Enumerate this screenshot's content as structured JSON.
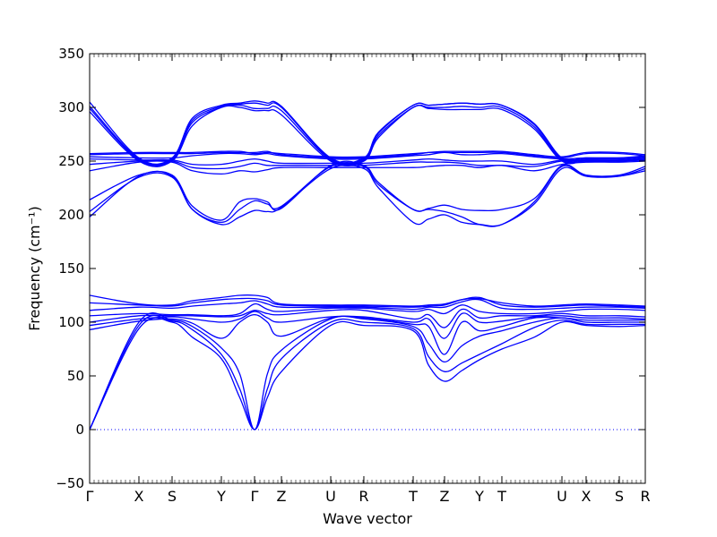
{
  "chart_data": {
    "type": "line",
    "title": "",
    "xlabel": "Wave vector",
    "ylabel": "Frequency (cm⁻¹)",
    "ylim": [
      -50,
      350
    ],
    "yticks": [
      -50,
      0,
      50,
      100,
      150,
      200,
      250,
      300,
      350
    ],
    "grid": false,
    "legend": "none",
    "x_range": [
      0,
      100
    ],
    "kpoints": [
      {
        "label": "Γ",
        "x": 0
      },
      {
        "label": "X",
        "x": 8.87
      },
      {
        "label": "S",
        "x": 14.84
      },
      {
        "label": "Y",
        "x": 23.71
      },
      {
        "label": "Γ",
        "x": 29.68
      },
      {
        "label": "Z",
        "x": 34.52
      },
      {
        "label": "U",
        "x": 43.39
      },
      {
        "label": "R",
        "x": 49.35
      },
      {
        "label": "T",
        "x": 58.23
      },
      {
        "label": "Z",
        "x": 63.87
      },
      {
        "label": "Y",
        "x": 70.16
      },
      {
        "label": "T",
        "x": 74.19
      },
      {
        "label": "U",
        "x": 85.0
      },
      {
        "label": "X",
        "x": 89.35
      },
      {
        "label": "S",
        "x": 95.32
      },
      {
        "label": "R",
        "x": 100
      }
    ],
    "zero_line": {
      "y": 0,
      "style": "dotted"
    },
    "line_color": "#0000ff",
    "series": [
      {
        "x": [
          0,
          8.87,
          14.84,
          18.5,
          23.71,
          27.0,
          29.68,
          32.0,
          34.52,
          43.39,
          49.35,
          58.23,
          61.0,
          63.87,
          67.0,
          70.16,
          74.19,
          80.0,
          85.0,
          89.35,
          95.32,
          100
        ],
        "y": [
          0,
          94,
          100,
          86,
          66,
          30,
          0,
          30,
          54,
          97,
          97,
          92,
          60,
          45,
          55,
          65,
          75,
          86,
          100,
          97,
          96,
          97
        ]
      },
      {
        "x": [
          0,
          8.87,
          14.84,
          18.5,
          23.71,
          27.0,
          29.68,
          32.0,
          34.52,
          43.39,
          49.35,
          58.23,
          61.0,
          63.87,
          67.0,
          70.16,
          74.19,
          80.0,
          85.0,
          89.35,
          95.32,
          100
        ],
        "y": [
          0,
          97,
          101,
          93,
          70,
          38,
          0,
          38,
          66,
          100,
          100,
          94,
          68,
          54,
          62,
          70,
          80,
          95,
          102,
          98,
          98,
          98
        ]
      },
      {
        "x": [
          0,
          8.87,
          14.84,
          18.5,
          23.71,
          27.0,
          29.68,
          32.0,
          34.52,
          43.39,
          49.35,
          58.23,
          61.0,
          63.87,
          67.0,
          70.16,
          74.19,
          80.0,
          85.0,
          89.35,
          95.32,
          100
        ],
        "y": [
          0,
          100,
          102,
          96,
          76,
          52,
          0,
          52,
          74,
          103,
          103,
          96,
          80,
          63,
          78,
          87,
          92,
          100,
          104,
          100,
          100,
          100
        ]
      },
      {
        "x": [
          0,
          8.87,
          14.84,
          18.5,
          23.71,
          27.0,
          29.68,
          32.0,
          34.52,
          43.39,
          49.35,
          58.23,
          61.0,
          63.87,
          67.0,
          70.16,
          74.19,
          80.0,
          85.0,
          89.35,
          95.32,
          100
        ],
        "y": [
          93,
          101,
          103,
          99,
          85,
          100,
          107,
          100,
          87,
          104,
          104,
          98,
          96,
          70,
          100,
          92,
          96,
          104,
          104,
          102,
          102,
          102
        ]
      },
      {
        "x": [
          0,
          8.87,
          14.84,
          18.5,
          23.71,
          27.0,
          29.68,
          32.0,
          34.52,
          43.39,
          49.35,
          58.23,
          61.0,
          63.87,
          67.0,
          70.16,
          74.19,
          80.0,
          85.0,
          89.35,
          95.32,
          100
        ],
        "y": [
          97,
          103,
          105,
          103,
          100,
          103,
          110,
          104,
          100,
          105,
          105,
          100,
          103,
          85,
          108,
          100,
          101,
          105,
          106,
          104,
          104,
          103
        ]
      },
      {
        "x": [
          0,
          8.87,
          14.84,
          18.5,
          23.71,
          27.0,
          29.68,
          32.0,
          34.52,
          43.39,
          49.35,
          58.23,
          61.0,
          63.87,
          67.0,
          70.16,
          74.19,
          80.0,
          85.0,
          89.35,
          95.32,
          100
        ],
        "y": [
          100,
          106,
          106,
          106,
          105,
          106,
          111,
          108,
          107,
          111,
          111,
          103,
          107,
          95,
          112,
          104,
          106,
          106,
          108,
          106,
          106,
          105
        ]
      },
      {
        "x": [
          0,
          8.87,
          14.84,
          18.5,
          23.71,
          27.0,
          29.68,
          32.0,
          34.52,
          43.39,
          49.35,
          58.23,
          61.0,
          63.87,
          67.0,
          70.16,
          74.19,
          80.0,
          85.0,
          89.35,
          95.32,
          100
        ],
        "y": [
          106,
          108,
          107,
          107,
          106,
          108,
          117,
          112,
          110,
          113,
          113,
          110,
          112,
          108,
          116,
          110,
          108,
          108,
          110,
          112,
          112,
          111
        ]
      },
      {
        "x": [
          0,
          8.87,
          14.84,
          18.5,
          23.71,
          27.0,
          29.68,
          32.0,
          34.52,
          43.39,
          49.35,
          58.23,
          61.0,
          63.87,
          67.0,
          70.16,
          74.19,
          80.0,
          85.0,
          89.35,
          95.32,
          100
        ],
        "y": [
          111,
          114,
          113,
          115,
          117,
          118,
          120,
          117,
          114,
          114,
          114,
          112,
          114,
          114,
          119,
          121,
          113,
          112,
          113,
          114,
          114,
          113
        ]
      },
      {
        "x": [
          0,
          8.87,
          14.84,
          18.5,
          23.71,
          27.0,
          29.68,
          32.0,
          34.52,
          43.39,
          49.35,
          58.23,
          61.0,
          63.87,
          67.0,
          70.16,
          74.19,
          80.0,
          85.0,
          89.35,
          95.32,
          100
        ],
        "y": [
          118,
          116,
          115,
          118,
          121,
          122,
          122,
          120,
          116,
          115,
          115,
          114,
          115,
          116,
          121,
          123,
          116,
          114,
          115,
          116,
          115,
          114
        ]
      },
      {
        "x": [
          0,
          8.87,
          14.84,
          18.5,
          23.71,
          27.0,
          29.68,
          32.0,
          34.52,
          43.39,
          49.35,
          58.23,
          61.0,
          63.87,
          67.0,
          70.16,
          74.19,
          80.0,
          85.0,
          89.35,
          95.32,
          100
        ],
        "y": [
          125,
          117,
          116,
          120,
          123,
          125,
          125,
          123,
          117,
          116,
          116,
          115,
          116,
          117,
          121,
          122,
          118,
          115,
          116,
          117,
          116,
          115
        ]
      },
      {
        "x": [
          0,
          8.87,
          14.84,
          18.5,
          23.71,
          27.0,
          29.68,
          32.0,
          34.52,
          43.39,
          49.35,
          52.0,
          58.23,
          61.0,
          63.87,
          67.0,
          70.16,
          74.19,
          80.0,
          85.0,
          89.35,
          95.32,
          100
        ],
        "y": [
          198,
          236,
          236,
          205,
          191,
          198,
          204,
          203,
          207,
          243,
          243,
          225,
          193,
          196,
          200,
          193,
          191,
          191,
          210,
          243,
          236,
          236,
          241
        ]
      },
      {
        "x": [
          0,
          8.87,
          14.84,
          18.5,
          23.71,
          27.0,
          29.68,
          32.0,
          34.52,
          43.39,
          49.35,
          52.0,
          58.23,
          61.0,
          63.87,
          67.0,
          70.16,
          74.19,
          80.0,
          85.0,
          89.35,
          95.32,
          100
        ],
        "y": [
          203,
          235,
          235,
          205,
          193,
          205,
          213,
          210,
          208,
          245,
          245,
          228,
          205,
          205,
          203,
          198,
          191,
          191,
          212,
          245,
          236,
          236,
          243
        ]
      },
      {
        "x": [
          0,
          8.87,
          14.84,
          18.5,
          23.71,
          27.0,
          29.68,
          32.0,
          34.52,
          43.39,
          49.35,
          52.0,
          58.23,
          61.0,
          63.87,
          67.0,
          70.16,
          74.19,
          80.0,
          85.0,
          89.35,
          95.32,
          100
        ],
        "y": [
          214,
          237,
          237,
          208,
          195,
          212,
          215,
          212,
          206,
          246,
          246,
          230,
          205,
          206,
          209,
          205,
          204,
          205,
          215,
          246,
          237,
          237,
          245
        ]
      },
      {
        "x": [
          0,
          8.87,
          14.84,
          18.5,
          23.71,
          27.0,
          29.68,
          32.0,
          34.52,
          43.39,
          49.35,
          58.23,
          61.0,
          63.87,
          67.0,
          70.16,
          74.19,
          80.0,
          85.0,
          89.35,
          95.32,
          100
        ],
        "y": [
          241,
          249,
          249,
          241,
          238,
          241,
          240,
          242,
          244,
          244,
          244,
          244,
          245,
          246,
          246,
          244,
          246,
          241,
          247,
          249,
          249,
          250
        ]
      },
      {
        "x": [
          0,
          8.87,
          14.84,
          18.5,
          23.71,
          27.0,
          29.68,
          32.0,
          34.52,
          43.39,
          49.35,
          58.23,
          61.0,
          63.87,
          67.0,
          70.16,
          74.19,
          80.0,
          85.0,
          89.35,
          95.32,
          100
        ],
        "y": [
          247,
          250,
          250,
          244,
          243,
          245,
          248,
          246,
          246,
          246,
          246,
          249,
          249,
          249,
          248,
          246,
          246,
          245,
          250,
          250,
          250,
          251
        ]
      },
      {
        "x": [
          0,
          8.87,
          14.84,
          18.5,
          23.71,
          27.0,
          29.68,
          32.0,
          34.52,
          43.39,
          49.35,
          58.23,
          61.0,
          63.87,
          67.0,
          70.16,
          74.19,
          80.0,
          85.0,
          89.35,
          95.32,
          100
        ],
        "y": [
          252,
          251,
          251,
          247,
          247,
          250,
          252,
          250,
          248,
          248,
          248,
          251,
          252,
          251,
          250,
          250,
          250,
          247,
          251,
          251,
          251,
          252
        ]
      },
      {
        "x": [
          0,
          8.87,
          14.84,
          18.5,
          23.71,
          27.0,
          29.68,
          32.0,
          34.52,
          43.39,
          49.35,
          58.23,
          61.0,
          63.87,
          67.0,
          70.16,
          74.19,
          80.0,
          85.0,
          89.35,
          95.32,
          100
        ],
        "y": [
          254,
          253,
          253,
          255,
          257,
          257,
          256,
          257,
          255,
          252,
          252,
          255,
          256,
          258,
          256,
          256,
          257,
          254,
          252,
          253,
          253,
          254
        ]
      },
      {
        "x": [
          0,
          8.87,
          14.84,
          18.5,
          23.71,
          27.0,
          29.68,
          32.0,
          34.52,
          43.39,
          49.35,
          58.23,
          61.0,
          63.87,
          67.0,
          70.16,
          74.19,
          80.0,
          85.0,
          89.35,
          95.32,
          100
        ],
        "y": [
          256,
          257,
          257,
          257,
          258,
          258,
          258,
          259,
          256,
          253,
          253,
          256,
          258,
          258,
          258,
          258,
          258,
          255,
          253,
          257,
          257,
          255
        ]
      },
      {
        "x": [
          0,
          8.87,
          14.84,
          18.5,
          23.71,
          27.0,
          29.68,
          32.0,
          34.52,
          43.39,
          49.35,
          58.23,
          61.0,
          63.87,
          67.0,
          70.16,
          74.19,
          80.0,
          85.0,
          89.35,
          95.32,
          100
        ],
        "y": [
          257,
          258,
          258,
          258,
          259,
          259,
          257,
          258,
          257,
          254,
          254,
          257,
          258,
          259,
          259,
          259,
          259,
          256,
          254,
          258,
          258,
          256
        ]
      },
      {
        "x": [
          0,
          8.87,
          14.84,
          18.5,
          23.71,
          27.0,
          29.68,
          32.0,
          34.52,
          43.39,
          49.35,
          52.0,
          58.23,
          61.0,
          63.87,
          67.0,
          70.16,
          74.19,
          80.0,
          85.0,
          89.35,
          95.32,
          100
        ],
        "y": [
          296,
          250,
          250,
          283,
          300,
          300,
          297,
          297,
          293,
          250,
          250,
          272,
          300,
          299,
          298,
          298,
          298,
          298,
          280,
          250,
          250,
          250,
          252
        ]
      },
      {
        "x": [
          0,
          8.87,
          14.84,
          18.5,
          23.71,
          27.0,
          29.68,
          32.0,
          34.52,
          43.39,
          49.35,
          52.0,
          58.23,
          61.0,
          63.87,
          67.0,
          70.16,
          74.19,
          80.0,
          85.0,
          89.35,
          95.32,
          100
        ],
        "y": [
          299,
          251,
          251,
          286,
          300,
          302,
          299,
          299,
          297,
          251,
          251,
          274,
          300,
          300,
          300,
          301,
          300,
          300,
          282,
          251,
          251,
          251,
          253
        ]
      },
      {
        "x": [
          0,
          8.87,
          14.84,
          18.5,
          23.71,
          27.0,
          29.68,
          32.0,
          34.52,
          43.39,
          49.35,
          52.0,
          58.23,
          61.0,
          63.87,
          67.0,
          70.16,
          74.19,
          80.0,
          85.0,
          89.35,
          95.32,
          100
        ],
        "y": [
          301,
          252,
          252,
          288,
          301,
          303,
          304,
          302,
          300,
          252,
          252,
          276,
          302,
          302,
          303,
          304,
          303,
          302,
          284,
          252,
          252,
          252,
          254
        ]
      },
      {
        "x": [
          0,
          8.87,
          14.84,
          18.5,
          23.71,
          27.0,
          29.68,
          32.0,
          34.52,
          43.39,
          49.35,
          52.0,
          58.23,
          61.0,
          63.87,
          67.0,
          70.16,
          74.19,
          80.0,
          85.0,
          89.35,
          95.32,
          100
        ],
        "y": [
          305,
          253,
          253,
          290,
          302,
          304,
          306,
          304,
          301,
          253,
          253,
          277,
          302,
          302,
          303,
          304,
          303,
          302,
          285,
          253,
          253,
          253,
          255
        ]
      }
    ]
  }
}
